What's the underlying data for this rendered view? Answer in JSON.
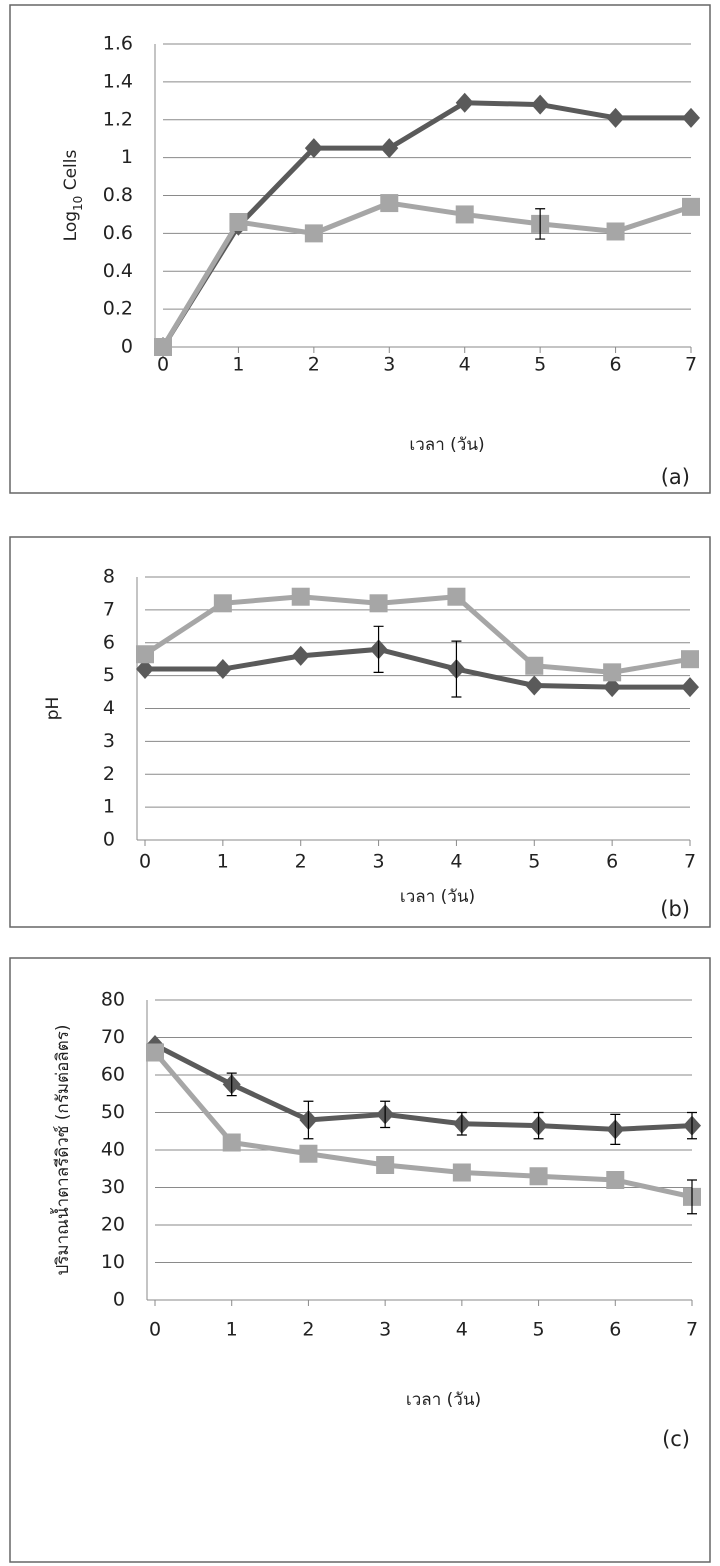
{
  "chart_data": [
    {
      "type": "line",
      "panel_label": "(a)",
      "xlabel": "เวลา (วัน)",
      "ylabel": [
        {
          "text": "Log"
        },
        {
          "text": "10",
          "sub": true
        },
        {
          "text": " Cells"
        }
      ],
      "x": [
        0,
        1,
        2,
        3,
        4,
        5,
        6,
        7
      ],
      "xlim": [
        0,
        7
      ],
      "xticks": [
        0,
        1,
        2,
        3,
        4,
        5,
        6,
        7
      ],
      "ylim": [
        0,
        1.6
      ],
      "yticks": [
        0,
        0.2,
        0.4,
        0.6,
        0.8,
        1,
        1.2,
        1.4,
        1.6
      ],
      "grid": true,
      "series": [
        {
          "color": "#5a5a5a",
          "marker": "diamond",
          "values": [
            0,
            0.64,
            1.05,
            1.05,
            1.29,
            1.28,
            1.21,
            1.21
          ],
          "errors": [
            null,
            null,
            null,
            null,
            null,
            null,
            null,
            null
          ]
        },
        {
          "color": "#a6a6a6",
          "marker": "square",
          "values": [
            0,
            0.66,
            0.6,
            0.76,
            0.7,
            0.65,
            0.61,
            0.74
          ],
          "errors": [
            null,
            null,
            null,
            null,
            null,
            0.08,
            null,
            null
          ]
        }
      ]
    },
    {
      "type": "line",
      "panel_label": "(b)",
      "xlabel": "เวลา (วัน)",
      "ylabel": [
        {
          "text": "pH"
        }
      ],
      "x": [
        0,
        1,
        2,
        3,
        4,
        5,
        6,
        7
      ],
      "xlim": [
        0,
        7
      ],
      "xticks": [
        0,
        1,
        2,
        3,
        4,
        5,
        6,
        7
      ],
      "ylim": [
        0,
        8
      ],
      "yticks": [
        0,
        1,
        2,
        3,
        4,
        5,
        6,
        7,
        8
      ],
      "grid": true,
      "series": [
        {
          "color": "#5a5a5a",
          "marker": "diamond",
          "values": [
            5.2,
            5.2,
            5.6,
            5.8,
            5.2,
            4.7,
            4.65,
            4.65
          ],
          "errors": [
            null,
            null,
            null,
            0.7,
            0.85,
            null,
            null,
            null
          ]
        },
        {
          "color": "#a6a6a6",
          "marker": "square",
          "values": [
            5.65,
            7.2,
            7.4,
            7.2,
            7.4,
            5.3,
            5.1,
            5.5
          ],
          "errors": [
            null,
            null,
            null,
            null,
            null,
            null,
            null,
            null
          ]
        }
      ]
    },
    {
      "type": "line",
      "panel_label": "(c)",
      "xlabel": "เวลา (วัน)",
      "ylabel": [
        {
          "text": "ปริมาณน้ำตาลรีดิวซ์ (กรัมต่อลิตร)"
        }
      ],
      "x": [
        0,
        1,
        2,
        3,
        4,
        5,
        6,
        7
      ],
      "xlim": [
        0,
        7
      ],
      "xticks": [
        0,
        1,
        2,
        3,
        4,
        5,
        6,
        7
      ],
      "ylim": [
        0,
        80
      ],
      "yticks": [
        0,
        10,
        20,
        30,
        40,
        50,
        60,
        70,
        80
      ],
      "grid": true,
      "series": [
        {
          "color": "#5a5a5a",
          "marker": "diamond",
          "values": [
            68,
            57.5,
            48,
            49.5,
            47,
            46.5,
            45.5,
            46.5
          ],
          "errors": [
            null,
            3,
            5,
            3.5,
            3,
            3.5,
            4,
            3.5
          ]
        },
        {
          "color": "#a6a6a6",
          "marker": "square",
          "values": [
            66,
            42,
            39,
            36,
            34,
            33,
            32,
            27.5
          ],
          "errors": [
            null,
            null,
            null,
            null,
            null,
            null,
            null,
            4.5
          ]
        }
      ]
    }
  ]
}
